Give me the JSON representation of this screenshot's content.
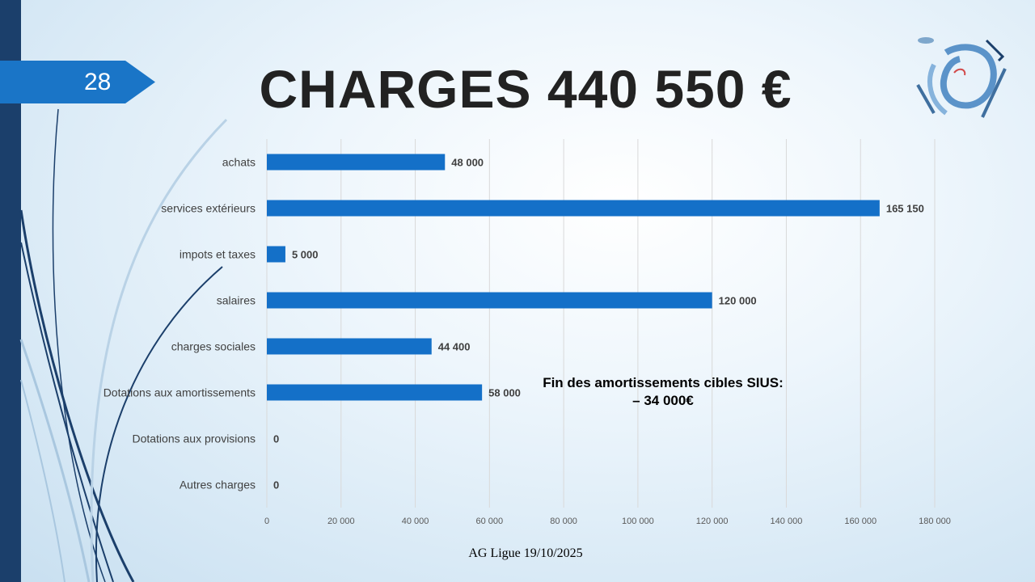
{
  "slide": {
    "number": "28",
    "title": "CHARGES 440 550 €",
    "footer": "AG Ligue 19/10/2025",
    "annotation_line1": "Fin des amortissements cibles SIUS:",
    "annotation_line2": "– 34 000€"
  },
  "colors": {
    "bar": "#1470c8",
    "accent_tab": "#1a75c7",
    "band": "#1b3f6b",
    "grid": "#d9d9d9"
  },
  "chart_data": {
    "type": "bar",
    "orientation": "horizontal",
    "title": "",
    "xlabel": "",
    "ylabel": "",
    "categories": [
      "achats",
      "services extérieurs",
      "impots et taxes",
      "salaires",
      "charges sociales",
      "Dotations aux amortissements",
      "Dotations aux provisions",
      "Autres charges"
    ],
    "values": [
      48000,
      165150,
      5000,
      120000,
      44400,
      58000,
      0,
      0
    ],
    "data_labels": [
      "48 000",
      "165 150",
      "5 000",
      "120 000",
      "44 400",
      "58 000",
      "0",
      "0"
    ],
    "xlim": [
      0,
      180000
    ],
    "xticks": [
      0,
      20000,
      40000,
      60000,
      80000,
      100000,
      120000,
      140000,
      160000,
      180000
    ],
    "xtick_labels": [
      "0",
      "20 000",
      "40 000",
      "60 000",
      "80 000",
      "100 000",
      "120 000",
      "140 000",
      "160 000",
      "180 000"
    ],
    "grid": "vertical",
    "legend": "none"
  },
  "icons": {
    "logo": "league-logo-icon"
  }
}
